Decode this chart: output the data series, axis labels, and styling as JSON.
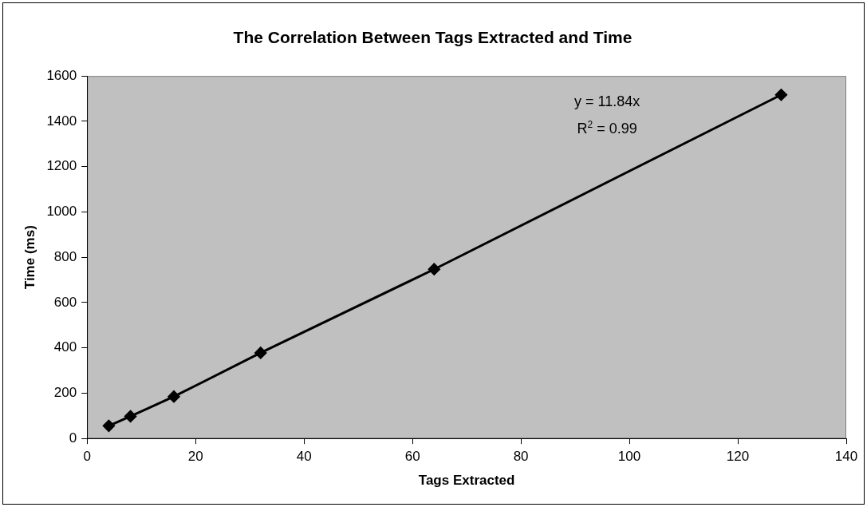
{
  "chart_data": {
    "type": "line",
    "title": "The Correlation Between Tags Extracted and Time",
    "xlabel": "Tags Extracted",
    "ylabel": "Time (ms)",
    "x": [
      4,
      8,
      16,
      32,
      64,
      128
    ],
    "series": [
      {
        "color": "#000000",
        "values": [
          56,
          98,
          185,
          378,
          747,
          1517
        ]
      }
    ],
    "xlim": [
      0,
      140
    ],
    "xticks": [
      0,
      20,
      40,
      60,
      80,
      100,
      120,
      140
    ],
    "ylim": [
      0,
      1600
    ],
    "yticks": [
      0,
      200,
      400,
      600,
      800,
      1000,
      1200,
      1400,
      1600
    ],
    "annotations": [
      "y = 11.84x",
      "R$^{2}$ = 0.99"
    ],
    "grid": false,
    "legend": false,
    "marker": "diamond",
    "line_style": "solid"
  }
}
